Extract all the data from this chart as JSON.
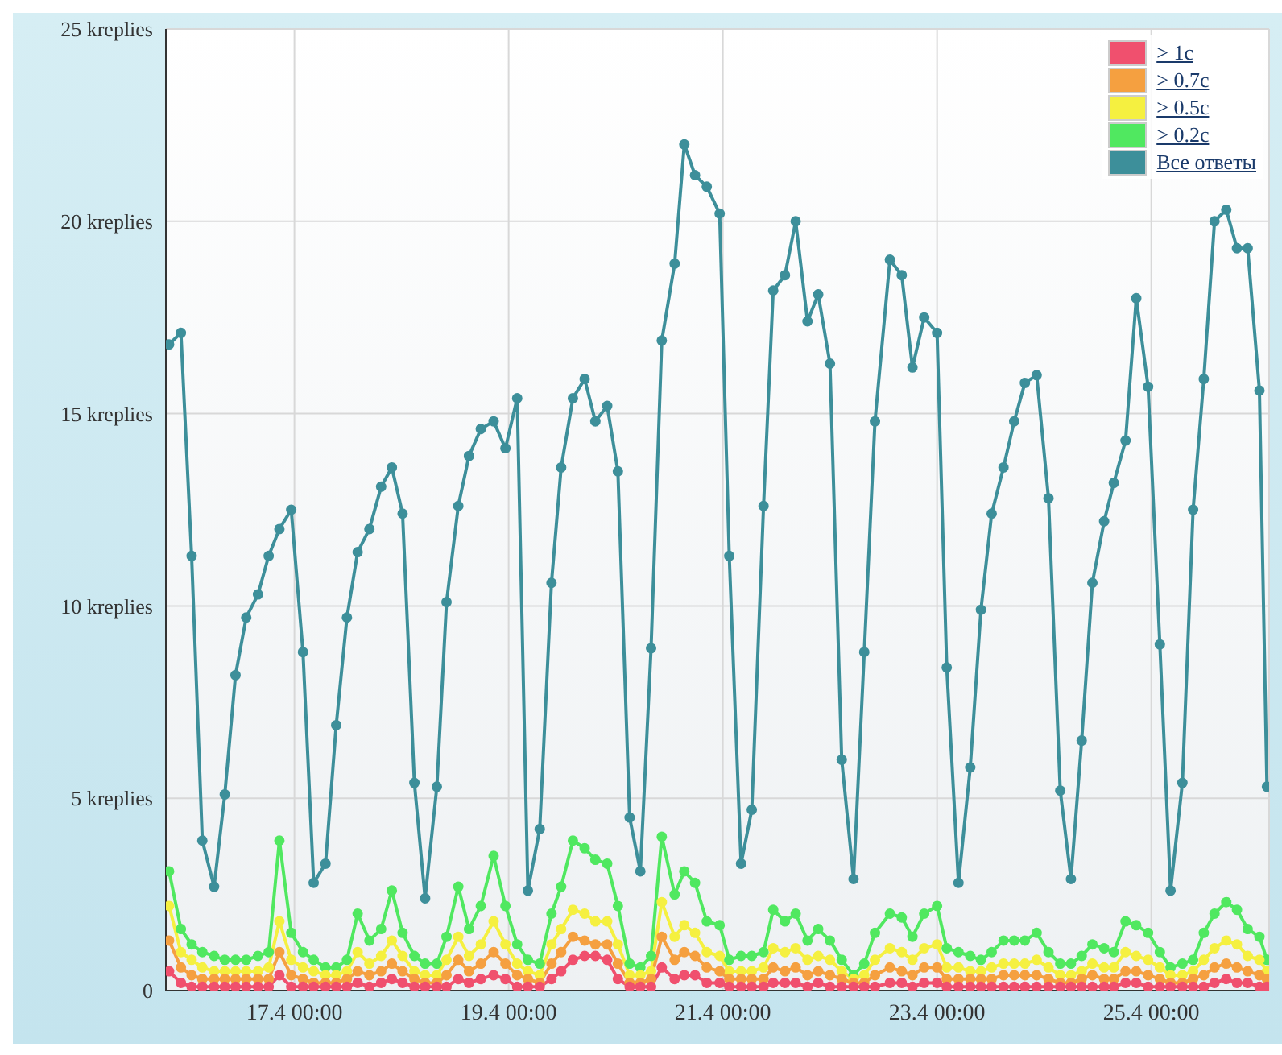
{
  "chart_data": {
    "type": "line",
    "x": [
      "--04-15T19:55",
      "--04-15T22:34",
      "--04-16T00:58",
      "--04-16T03:22",
      "--04-16T06:00",
      "--04-16T08:24",
      "--04-16T10:48",
      "--04-16T13:12",
      "--04-16T15:50",
      "--04-16T18:14",
      "--04-16T20:38",
      "--04-16T23:17",
      "--04-17T01:55",
      "--04-17T04:19",
      "--04-17T06:58",
      "--04-17T09:22",
      "--04-17T11:46",
      "--04-17T14:10",
      "--04-17T16:48",
      "--04-17T19:26",
      "--04-17T21:50",
      "--04-18T00:14",
      "--04-18T02:53",
      "--04-18T05:17",
      "--04-18T07:55",
      "--04-18T10:05",
      "--04-18T12:43",
      "--04-18T15:07",
      "--04-18T17:46",
      "--04-18T20:38",
      "--04-18T23:17",
      "--04-19T01:55",
      "--04-19T04:19",
      "--04-19T06:58",
      "--04-19T09:36",
      "--04-19T11:46",
      "--04-19T14:24",
      "--04-19T17:02",
      "--04-19T19:26",
      "--04-19T22:05",
      "--04-20T00:29",
      "--04-20T03:07",
      "--04-20T05:31",
      "--04-20T07:55",
      "--04-20T10:19",
      "--04-20T13:12",
      "--04-20T15:22",
      "--04-20T17:46",
      "--04-20T20:24",
      "--04-20T23:17",
      "--04-21T01:26",
      "--04-21T04:05",
      "--04-21T06:29",
      "--04-21T09:07",
      "--04-21T11:17",
      "--04-21T13:55",
      "--04-21T16:19",
      "--04-21T18:58",
      "--04-21T21:22",
      "--04-22T00:00",
      "--04-22T02:38",
      "--04-22T05:17",
      "--04-22T07:41",
      "--04-22T10:05",
      "--04-22T13:26",
      "--04-22T16:05",
      "--04-22T18:29",
      "--04-22T21:07",
      "--04-23T00:00",
      "--04-23T02:10",
      "--04-23T04:48",
      "--04-23T07:26",
      "--04-23T09:50",
      "--04-23T12:14",
      "--04-23T14:53",
      "--04-23T17:17",
      "--04-23T19:41",
      "--04-23T22:19",
      "--04-24T00:58",
      "--04-24T03:36",
      "--04-24T06:00",
      "--04-24T08:24",
      "--04-24T10:48",
      "--04-24T13:26",
      "--04-24T15:36",
      "--04-24T18:14",
      "--04-24T20:38",
      "--04-24T23:17",
      "--04-25T01:55",
      "--04-25T04:19",
      "--04-25T06:58",
      "--04-25T09:22",
      "--04-25T11:46",
      "--04-25T14:10",
      "--04-25T16:48",
      "--04-25T19:12",
      "--04-25T21:36",
      "--04-26T00:14",
      "--04-26T01:55"
    ],
    "series": [
      {
        "name": "> 1c",
        "color": "#f0506e",
        "values": [
          0.5,
          0.2,
          0.1,
          0.1,
          0.1,
          0.1,
          0.1,
          0.1,
          0.1,
          0.1,
          0.4,
          0.1,
          0.1,
          0.1,
          0.1,
          0.1,
          0.1,
          0.2,
          0.1,
          0.2,
          0.3,
          0.2,
          0.1,
          0.1,
          0.1,
          0.1,
          0.3,
          0.2,
          0.3,
          0.4,
          0.3,
          0.1,
          0.1,
          0.1,
          0.3,
          0.5,
          0.8,
          0.9,
          0.9,
          0.8,
          0.3,
          0.1,
          0.1,
          0.1,
          0.6,
          0.3,
          0.4,
          0.4,
          0.2,
          0.2,
          0.1,
          0.1,
          0.1,
          0.1,
          0.2,
          0.2,
          0.2,
          0.1,
          0.2,
          0.1,
          0.1,
          0.1,
          0.1,
          0.1,
          0.2,
          0.2,
          0.1,
          0.2,
          0.2,
          0.1,
          0.1,
          0.1,
          0.1,
          0.1,
          0.1,
          0.1,
          0.1,
          0.1,
          0.1,
          0.1,
          0.1,
          0.1,
          0.1,
          0.1,
          0.1,
          0.2,
          0.2,
          0.1,
          0.1,
          0.1,
          0.1,
          0.1,
          0.1,
          0.2,
          0.3,
          0.2,
          0.2,
          0.1,
          0.1
        ]
      },
      {
        "name": "> 0.7c",
        "color": "#f5a040",
        "values": [
          1.3,
          0.6,
          0.4,
          0.3,
          0.3,
          0.3,
          0.3,
          0.3,
          0.3,
          0.3,
          1.0,
          0.4,
          0.3,
          0.2,
          0.2,
          0.2,
          0.3,
          0.5,
          0.4,
          0.5,
          0.7,
          0.5,
          0.3,
          0.2,
          0.2,
          0.4,
          0.8,
          0.5,
          0.7,
          1.0,
          0.7,
          0.4,
          0.3,
          0.2,
          0.7,
          1.0,
          1.4,
          1.3,
          1.2,
          1.2,
          0.7,
          0.2,
          0.2,
          0.3,
          1.4,
          0.8,
          1.0,
          0.9,
          0.6,
          0.5,
          0.3,
          0.3,
          0.3,
          0.3,
          0.6,
          0.5,
          0.6,
          0.4,
          0.5,
          0.4,
          0.3,
          0.2,
          0.2,
          0.4,
          0.6,
          0.5,
          0.4,
          0.6,
          0.6,
          0.3,
          0.3,
          0.3,
          0.3,
          0.3,
          0.4,
          0.4,
          0.4,
          0.4,
          0.3,
          0.2,
          0.2,
          0.3,
          0.4,
          0.3,
          0.3,
          0.5,
          0.5,
          0.4,
          0.3,
          0.2,
          0.2,
          0.3,
          0.4,
          0.6,
          0.7,
          0.6,
          0.5,
          0.4,
          0.3
        ]
      },
      {
        "name": "> 0.5c",
        "color": "#f5f040",
        "values": [
          2.2,
          1.0,
          0.8,
          0.6,
          0.5,
          0.5,
          0.5,
          0.5,
          0.5,
          0.6,
          1.8,
          0.8,
          0.6,
          0.5,
          0.4,
          0.4,
          0.5,
          1.0,
          0.7,
          0.9,
          1.3,
          0.9,
          0.5,
          0.4,
          0.4,
          0.8,
          1.4,
          0.9,
          1.2,
          1.8,
          1.2,
          0.7,
          0.5,
          0.4,
          1.2,
          1.6,
          2.1,
          2.0,
          1.8,
          1.8,
          1.2,
          0.4,
          0.4,
          0.5,
          2.3,
          1.4,
          1.7,
          1.5,
          1.0,
          0.9,
          0.5,
          0.5,
          0.5,
          0.6,
          1.1,
          1.0,
          1.1,
          0.8,
          0.9,
          0.8,
          0.5,
          0.3,
          0.4,
          0.8,
          1.1,
          1.0,
          0.8,
          1.1,
          1.2,
          0.6,
          0.6,
          0.5,
          0.5,
          0.6,
          0.7,
          0.7,
          0.7,
          0.8,
          0.6,
          0.4,
          0.4,
          0.5,
          0.7,
          0.6,
          0.6,
          1.0,
          0.9,
          0.8,
          0.6,
          0.4,
          0.4,
          0.5,
          0.8,
          1.1,
          1.3,
          1.2,
          0.9,
          0.8,
          0.5
        ]
      },
      {
        "name": "> 0.2c",
        "color": "#50e860",
        "values": [
          3.1,
          1.6,
          1.2,
          1.0,
          0.9,
          0.8,
          0.8,
          0.8,
          0.9,
          1.0,
          3.9,
          1.5,
          1.0,
          0.8,
          0.6,
          0.6,
          0.8,
          2.0,
          1.3,
          1.6,
          2.6,
          1.5,
          0.9,
          0.7,
          0.7,
          1.4,
          2.7,
          1.6,
          2.2,
          3.5,
          2.2,
          1.2,
          0.8,
          0.7,
          2.0,
          2.7,
          3.9,
          3.7,
          3.4,
          3.3,
          2.2,
          0.7,
          0.6,
          0.9,
          4.0,
          2.5,
          3.1,
          2.8,
          1.8,
          1.7,
          0.8,
          0.9,
          0.9,
          1.0,
          2.1,
          1.8,
          2.0,
          1.3,
          1.6,
          1.3,
          0.8,
          0.4,
          0.7,
          1.5,
          2.0,
          1.9,
          1.4,
          2.0,
          2.2,
          1.1,
          1.0,
          0.9,
          0.8,
          1.0,
          1.3,
          1.3,
          1.3,
          1.5,
          1.0,
          0.7,
          0.7,
          0.9,
          1.2,
          1.1,
          1.0,
          1.8,
          1.7,
          1.5,
          1.0,
          0.6,
          0.7,
          0.8,
          1.5,
          2.0,
          2.3,
          2.1,
          1.6,
          1.4,
          0.8
        ]
      },
      {
        "name": "Все ответы",
        "color": "#3d8f9a",
        "values": [
          16.8,
          17.1,
          11.3,
          3.9,
          2.7,
          5.1,
          8.2,
          9.7,
          10.3,
          11.3,
          12.0,
          12.5,
          8.8,
          2.8,
          3.3,
          6.9,
          9.7,
          11.4,
          12.0,
          13.1,
          13.6,
          12.4,
          5.4,
          2.4,
          5.3,
          10.1,
          12.6,
          13.9,
          14.6,
          14.8,
          14.1,
          15.4,
          2.6,
          4.2,
          10.6,
          13.6,
          15.4,
          15.9,
          14.8,
          15.2,
          13.5,
          4.5,
          3.1,
          8.9,
          16.9,
          18.9,
          22.0,
          21.2,
          20.9,
          20.2,
          11.3,
          3.3,
          4.7,
          12.6,
          18.2,
          18.6,
          20.0,
          17.4,
          18.1,
          16.3,
          6.0,
          2.9,
          8.8,
          14.8,
          19.0,
          18.6,
          16.2,
          17.5,
          17.1,
          8.4,
          2.8,
          5.8,
          9.9,
          12.4,
          13.6,
          14.8,
          15.8,
          16.0,
          12.8,
          5.2,
          2.9,
          6.5,
          10.6,
          12.2,
          13.2,
          14.3,
          18.0,
          15.7,
          9.0,
          2.6,
          5.4,
          12.5,
          15.9,
          20.0,
          20.3,
          19.3,
          19.3,
          15.6,
          5.3
        ]
      }
    ],
    "xlim": [
      "--04-15T19:12",
      "--04-26T02:24"
    ],
    "xticks": [
      {
        "value": "--04-17T00:00",
        "label": "17.4 00:00"
      },
      {
        "value": "--04-19T00:00",
        "label": "19.4 00:00"
      },
      {
        "value": "--04-21T00:00",
        "label": "21.4 00:00"
      },
      {
        "value": "--04-23T00:00",
        "label": "23.4 00:00"
      },
      {
        "value": "--04-25T00:00",
        "label": "25.4 00:00"
      }
    ],
    "ylim": [
      0,
      25
    ],
    "yticks": [
      0,
      {
        "value": 5,
        "label": "5 kreplies"
      },
      {
        "value": 10,
        "label": "10 kreplies"
      },
      {
        "value": 15,
        "label": "15 kreplies"
      },
      {
        "value": 20,
        "label": "20 kreplies"
      },
      {
        "value": 25,
        "label": "25 kreplies"
      }
    ],
    "grid": true,
    "legend": "top right",
    "marker": "circle",
    "line_style": "solid"
  }
}
